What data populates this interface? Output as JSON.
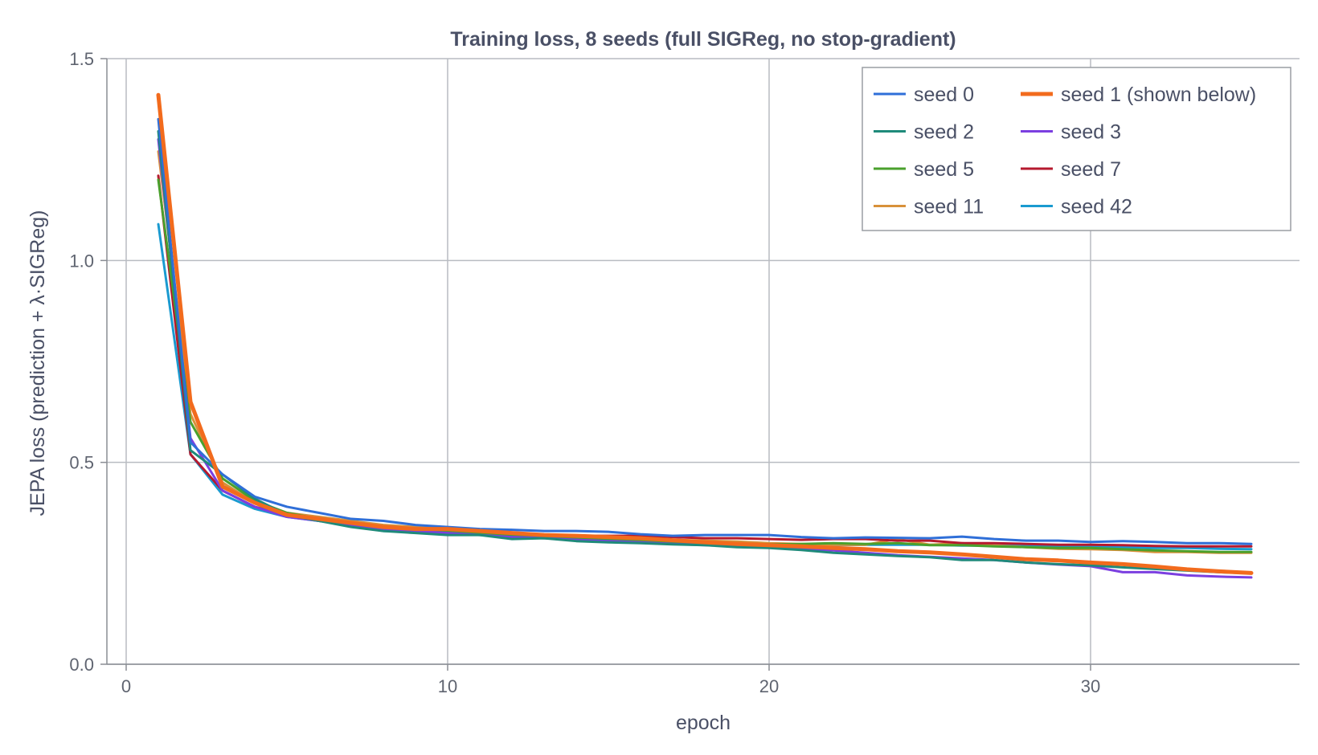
{
  "chart_data": {
    "type": "line",
    "title": "Training loss, 8 seeds (full SIGReg, no stop-gradient)",
    "xlabel": "epoch",
    "ylabel": "JEPA loss (prediction + λ·SIGReg)",
    "xlim": [
      -0.6,
      36.5
    ],
    "ylim": [
      0,
      1.5
    ],
    "xticks": [
      0,
      10,
      20,
      30
    ],
    "yticks": [
      0.0,
      0.5,
      1.0,
      1.5
    ],
    "ytick_labels": [
      "0.0",
      "0.5",
      "1.0",
      "1.5"
    ],
    "grid": true,
    "legend_position": "top-right",
    "legend_columns": 2,
    "x": [
      1,
      2,
      3,
      4,
      5,
      6,
      7,
      8,
      9,
      10,
      11,
      12,
      13,
      14,
      15,
      16,
      17,
      18,
      19,
      20,
      21,
      22,
      23,
      24,
      25,
      26,
      27,
      28,
      29,
      30,
      31,
      32,
      33,
      34,
      35
    ],
    "series": [
      {
        "name": "seed 0",
        "color": "#2f6fd8",
        "width": 3,
        "values": [
          1.35,
          0.55,
          0.47,
          0.415,
          0.39,
          0.375,
          0.36,
          0.355,
          0.345,
          0.34,
          0.335,
          0.333,
          0.33,
          0.33,
          0.328,
          0.322,
          0.318,
          0.32,
          0.32,
          0.32,
          0.315,
          0.312,
          0.314,
          0.313,
          0.312,
          0.316,
          0.31,
          0.306,
          0.306,
          0.303,
          0.305,
          0.303,
          0.3,
          0.3,
          0.298
        ]
      },
      {
        "name": "seed 1 (shown below)",
        "color": "#f26b1d",
        "width": 5,
        "values": [
          1.41,
          0.65,
          0.44,
          0.4,
          0.37,
          0.36,
          0.35,
          0.34,
          0.335,
          0.335,
          0.33,
          0.325,
          0.32,
          0.318,
          0.315,
          0.312,
          0.307,
          0.302,
          0.298,
          0.295,
          0.292,
          0.288,
          0.285,
          0.28,
          0.277,
          0.272,
          0.266,
          0.26,
          0.257,
          0.252,
          0.248,
          0.242,
          0.235,
          0.23,
          0.226
        ]
      },
      {
        "name": "seed 2",
        "color": "#1f8a7a",
        "width": 3,
        "values": [
          1.32,
          0.53,
          0.47,
          0.41,
          0.37,
          0.355,
          0.34,
          0.33,
          0.325,
          0.32,
          0.32,
          0.31,
          0.312,
          0.305,
          0.302,
          0.3,
          0.297,
          0.295,
          0.29,
          0.288,
          0.283,
          0.276,
          0.272,
          0.268,
          0.265,
          0.258,
          0.258,
          0.252,
          0.248,
          0.245,
          0.24,
          0.236,
          0.232,
          0.228,
          0.225
        ]
      },
      {
        "name": "seed 3",
        "color": "#7b3fe0",
        "width": 3,
        "values": [
          1.3,
          0.56,
          0.43,
          0.39,
          0.365,
          0.355,
          0.345,
          0.335,
          0.33,
          0.325,
          0.32,
          0.315,
          0.312,
          0.308,
          0.305,
          0.302,
          0.298,
          0.295,
          0.292,
          0.29,
          0.286,
          0.282,
          0.276,
          0.27,
          0.266,
          0.262,
          0.258,
          0.252,
          0.247,
          0.243,
          0.228,
          0.228,
          0.22,
          0.217,
          0.215
        ]
      },
      {
        "name": "seed 5",
        "color": "#4aa02c",
        "width": 3,
        "values": [
          1.2,
          0.6,
          0.46,
          0.405,
          0.375,
          0.36,
          0.35,
          0.34,
          0.33,
          0.33,
          0.325,
          0.32,
          0.315,
          0.31,
          0.308,
          0.305,
          0.302,
          0.3,
          0.298,
          0.297,
          0.298,
          0.3,
          0.298,
          0.3,
          0.295,
          0.295,
          0.292,
          0.29,
          0.288,
          0.288,
          0.285,
          0.282,
          0.28,
          0.278,
          0.278
        ]
      },
      {
        "name": "seed 7",
        "color": "#b5192e",
        "width": 3,
        "values": [
          1.21,
          0.52,
          0.43,
          0.39,
          0.37,
          0.355,
          0.348,
          0.335,
          0.33,
          0.33,
          0.325,
          0.322,
          0.32,
          0.318,
          0.318,
          0.318,
          0.315,
          0.312,
          0.312,
          0.31,
          0.308,
          0.31,
          0.31,
          0.306,
          0.306,
          0.3,
          0.3,
          0.298,
          0.296,
          0.296,
          0.295,
          0.293,
          0.292,
          0.292,
          0.292
        ]
      },
      {
        "name": "seed 11",
        "color": "#d8913a",
        "width": 3,
        "values": [
          1.27,
          0.62,
          0.45,
          0.4,
          0.375,
          0.365,
          0.355,
          0.345,
          0.34,
          0.335,
          0.33,
          0.325,
          0.32,
          0.318,
          0.316,
          0.31,
          0.308,
          0.306,
          0.304,
          0.3,
          0.298,
          0.296,
          0.296,
          0.31,
          0.296,
          0.3,
          0.294,
          0.29,
          0.286,
          0.285,
          0.283,
          0.278,
          0.278,
          0.276,
          0.276
        ]
      },
      {
        "name": "seed 42",
        "color": "#1a9ad0",
        "width": 3,
        "values": [
          1.09,
          0.52,
          0.42,
          0.385,
          0.365,
          0.355,
          0.345,
          0.33,
          0.328,
          0.325,
          0.325,
          0.318,
          0.318,
          0.312,
          0.31,
          0.307,
          0.303,
          0.3,
          0.297,
          0.297,
          0.295,
          0.295,
          0.296,
          0.296,
          0.296,
          0.294,
          0.294,
          0.293,
          0.292,
          0.292,
          0.29,
          0.288,
          0.288,
          0.286,
          0.285
        ]
      }
    ]
  }
}
